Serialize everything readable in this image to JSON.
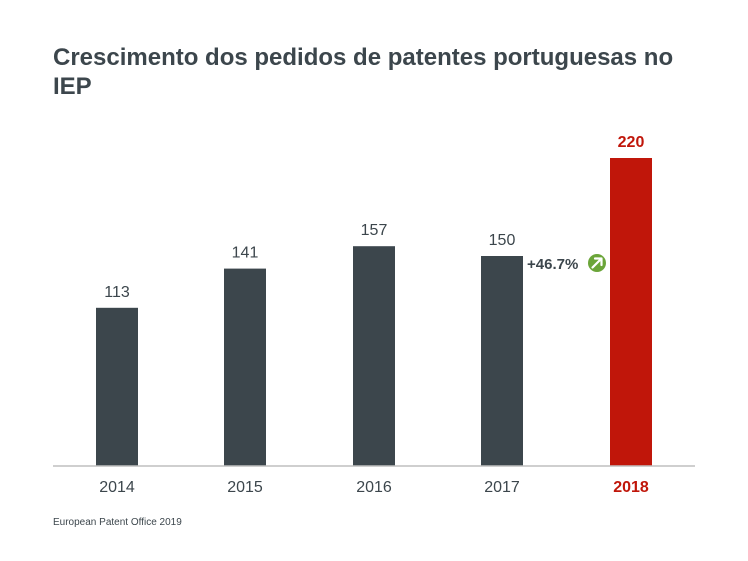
{
  "title": "Crescimento dos pedidos de patentes portuguesas no IEP",
  "source": "European Patent Office 2019",
  "chart_data": {
    "type": "bar",
    "categories": [
      "2014",
      "2015",
      "2016",
      "2017",
      "2018"
    ],
    "values": [
      113,
      141,
      157,
      150,
      220
    ],
    "ylim": [
      0,
      220
    ],
    "grid": false,
    "highlight_index": 4,
    "annotation": {
      "text": "+46.7%",
      "icon": "arrow-up-right-icon"
    },
    "colors": {
      "bar": "#3c464c",
      "highlight": "#c0160a",
      "baseline": "#bfbfbf",
      "annotation_icon": "#6ba539"
    }
  }
}
